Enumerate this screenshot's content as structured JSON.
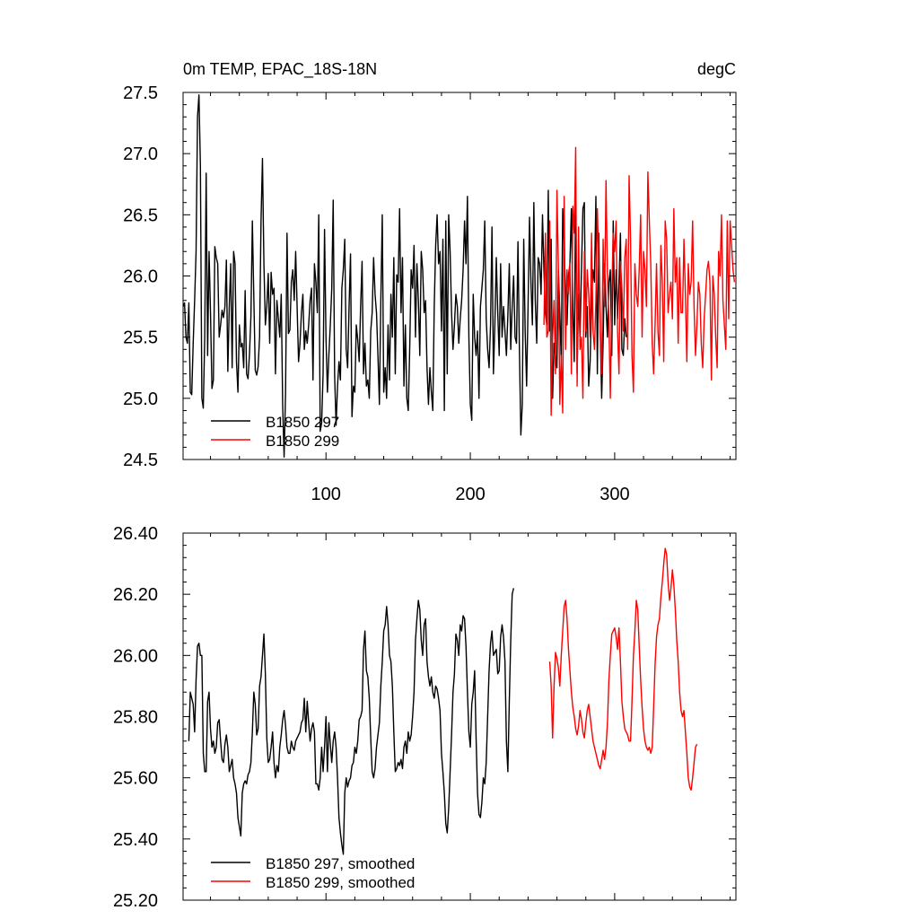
{
  "chart_data": [
    {
      "type": "line",
      "title_left": "0m TEMP, EPAC_18S-18N",
      "title_right": "degC",
      "xlabel": "",
      "ylabel": "",
      "xlim": [
        1,
        384
      ],
      "ylim": [
        24.5,
        27.5
      ],
      "xticks": [
        100,
        200,
        300
      ],
      "xtick_labels": [
        "100",
        "200",
        "300"
      ],
      "yticks": [
        24.5,
        25.0,
        25.5,
        26.0,
        26.5,
        27.0,
        27.5
      ],
      "ytick_labels": [
        "24.5",
        "25.0",
        "25.5",
        "26.0",
        "26.5",
        "27.0",
        "27.5"
      ],
      "grid": false,
      "legend_position": "bottom-left",
      "series": [
        {
          "name": "B1850 297",
          "color": "#000000",
          "x_start": 1,
          "values": [
            25.75,
            25.78,
            25.5,
            25.45,
            25.78,
            25.05,
            25.03,
            25.45,
            25.8,
            26.2,
            27.3,
            27.48,
            26.9,
            25.0,
            24.92,
            25.5,
            26.84,
            25.35,
            26.2,
            25.7,
            25.08,
            25.15,
            26.24,
            26.15,
            26.1,
            25.5,
            25.6,
            25.72,
            25.66,
            25.75,
            26.13,
            25.22,
            25.75,
            26.1,
            25.25,
            26.2,
            26.1,
            25.3,
            25.05,
            25.6,
            25.42,
            25.45,
            25.25,
            25.88,
            25.2,
            25.16,
            25.36,
            25.67,
            26.45,
            25.83,
            25.23,
            25.19,
            25.26,
            25.5,
            26.45,
            26.96,
            26.1,
            25.6,
            25.75,
            26.02,
            25.45,
            26.03,
            25.85,
            25.9,
            25.2,
            25.8,
            25.65,
            25.5,
            25.85,
            24.94,
            24.52,
            25.05,
            26.35,
            25.53,
            25.56,
            25.95,
            26.05,
            25.8,
            26.2,
            25.75,
            25.3,
            25.45,
            25.7,
            25.85,
            25.4,
            25.55,
            25.45,
            25.6,
            25.8,
            25.9,
            25.15,
            26.1,
            25.95,
            25.7,
            26.5,
            24.73,
            24.8,
            25.2,
            26.38,
            25.5,
            25.05,
            25.35,
            25.6,
            25.9,
            26.62,
            25.18,
            24.78,
            25.1,
            25.3,
            25.15,
            25.9,
            26.05,
            26.3,
            25.4,
            25.25,
            25.75,
            26.18,
            24.85,
            25.1,
            25.05,
            25.6,
            25.48,
            25.3,
            25.75,
            26.12,
            25.2,
            25.45,
            25.1,
            25.15,
            25.0,
            25.55,
            25.7,
            26.15,
            25.85,
            25.7,
            25.35,
            24.95,
            25.8,
            26.5,
            25.05,
            25.25,
            25.0,
            25.6,
            25.15,
            25.85,
            25.5,
            26.15,
            25.2,
            26.01,
            25.95,
            26.55,
            25.7,
            26.15,
            25.1,
            25.6,
            25.0,
            24.9,
            25.4,
            26.05,
            25.9,
            26.25,
            25.5,
            26.1,
            25.8,
            25.35,
            26.2,
            26.05,
            25.7,
            25.8,
            25.25,
            24.95,
            25.25,
            25.05,
            24.9,
            25.75,
            26.25,
            26.5,
            26.1,
            26.2,
            25.55,
            26.3,
            24.9,
            26.45,
            25.2,
            26.5,
            26.2,
            25.7,
            25.4,
            25.6,
            25.85,
            25.75,
            25.45,
            25.65,
            25.8,
            26.05,
            26.45,
            26.1,
            26.65,
            25.5,
            24.95,
            24.82,
            25.85,
            25.5,
            25.35,
            25.55,
            25.0,
            25.75,
            25.9,
            26.05,
            26.45,
            25.65,
            25.4,
            25.25,
            25.6,
            26.4,
            25.2,
            25.6,
            26.15,
            25.7,
            25.35,
            26.1,
            25.5,
            25.75,
            25.55,
            25.35,
            25.68,
            26.1,
            25.4,
            25.75,
            26.0,
            25.5,
            25.45,
            26.28,
            25.4,
            24.7,
            24.95,
            26.3,
            25.55,
            25.1,
            25.75,
            26.48,
            25.95,
            25.6,
            26.6,
            25.8,
            25.45,
            26.15,
            26.1,
            25.85,
            26.5,
            26.05,
            25.7,
            25.6,
            26.7,
            25.55,
            26.3,
            25.0,
            25.45,
            25.35,
            25.25,
            26.05,
            25.7,
            25.3,
            26.55,
            26.2,
            25.9,
            25.6,
            26.0,
            26.1,
            26.55,
            25.75,
            25.3,
            26.7,
            25.2,
            25.85,
            25.5,
            26.05,
            26.55,
            26.6,
            25.5,
            25.75,
            25.1,
            25.3,
            25.8,
            26.05,
            25.95,
            26.65,
            25.2,
            26.35,
            25.55,
            25.0,
            25.45,
            26.1,
            25.75,
            25.5,
            25.95,
            26.05,
            25.35,
            26.45,
            25.6,
            26.05,
            25.65,
            25.95,
            26.35,
            25.4,
            25.35,
            25.65,
            25.5
          ]
        },
        {
          "name": "B1850 299",
          "color": "#ff0000",
          "x_start": 251,
          "values": [
            25.6,
            26.35,
            25.5,
            25.55,
            26.45,
            24.86,
            25.5,
            25.8,
            25.2,
            26.7,
            26.08,
            24.95,
            25.35,
            24.88,
            26.65,
            25.4,
            26.05,
            25.85,
            26.1,
            25.2,
            26.57,
            26.35,
            27.05,
            25.1,
            26.4,
            25.4,
            25.5,
            25.0,
            26.2,
            25.55,
            26.05,
            25.85,
            25.5,
            26.35,
            25.55,
            25.4,
            25.8,
            26.55,
            26.1,
            25.55,
            25.2,
            26.3,
            25.75,
            26.78,
            26.0,
            25.65,
            25.0,
            25.85,
            26.35,
            26.2,
            26.45,
            25.55,
            25.2,
            26.12,
            25.9,
            25.55,
            26.15,
            26.3,
            25.4,
            26.82,
            26.3,
            25.35,
            25.05,
            26.1,
            25.85,
            25.75,
            26.05,
            26.5,
            25.5,
            26.2,
            26.05,
            25.75,
            26.85,
            26.45,
            26.1,
            25.45,
            25.2,
            25.6,
            26.1,
            25.55,
            25.35,
            26.25,
            25.95,
            25.3,
            26.45,
            26.3,
            25.7,
            25.85,
            25.95,
            25.65,
            26.55,
            25.95,
            26.15,
            25.45,
            26.15,
            25.7,
            25.7,
            26.3,
            25.85,
            25.3,
            26.1,
            25.85,
            25.95,
            26.45,
            25.75,
            25.35,
            25.6,
            25.95,
            25.85,
            25.45,
            25.25,
            25.65,
            25.85,
            26.05,
            26.12,
            25.95,
            25.15,
            26.0,
            25.85,
            25.5,
            25.25,
            26.2,
            26.0,
            26.5,
            25.8,
            25.6,
            25.4,
            26.45,
            25.65,
            26.45,
            26.25,
            26.05,
            25.95
          ]
        }
      ]
    },
    {
      "type": "line",
      "title_left": "",
      "title_right": "",
      "xlabel": "",
      "ylabel": "",
      "xlim": [
        1,
        384
      ],
      "ylim": [
        25.2,
        26.4
      ],
      "xticks": [
        100,
        200,
        300
      ],
      "xtick_labels": [],
      "yticks": [
        25.2,
        25.4,
        25.6,
        25.8,
        26.0,
        26.2,
        26.4
      ],
      "ytick_labels": [
        "25.20",
        "25.40",
        "25.60",
        "25.80",
        "26.00",
        "26.20",
        "26.40"
      ],
      "grid": false,
      "legend_position": "bottom-left",
      "series": [
        {
          "name": "B1850 297, smoothed",
          "color": "#000000",
          "x_start": 5,
          "values": [
            25.72,
            25.88,
            25.86,
            25.84,
            25.75,
            25.92,
            26.03,
            26.04,
            26.0,
            26.0,
            25.68,
            25.62,
            25.62,
            25.85,
            25.88,
            25.76,
            25.7,
            25.72,
            25.68,
            25.7,
            25.78,
            25.79,
            25.72,
            25.66,
            25.65,
            25.71,
            25.74,
            25.7,
            25.62,
            25.64,
            25.66,
            25.6,
            25.58,
            25.55,
            25.47,
            25.44,
            25.41,
            25.55,
            25.58,
            25.59,
            25.58,
            25.61,
            25.62,
            25.65,
            25.75,
            25.88,
            25.84,
            25.74,
            25.76,
            25.9,
            25.93,
            26.0,
            26.07,
            25.94,
            25.73,
            25.65,
            25.66,
            25.7,
            25.75,
            25.65,
            25.6,
            25.64,
            25.62,
            25.7,
            25.74,
            25.79,
            25.82,
            25.77,
            25.7,
            25.68,
            25.68,
            25.72,
            25.7,
            25.69,
            25.72,
            25.73,
            25.74,
            25.75,
            25.78,
            25.79,
            25.86,
            25.75,
            25.85,
            25.78,
            25.72,
            25.76,
            25.78,
            25.75,
            25.58,
            25.58,
            25.56,
            25.6,
            25.7,
            25.62,
            25.7,
            25.8,
            25.62,
            25.78,
            25.71,
            25.65,
            25.72,
            25.75,
            25.7,
            25.6,
            25.47,
            25.42,
            25.38,
            25.35,
            25.55,
            25.6,
            25.57,
            25.59,
            25.6,
            25.64,
            25.65,
            25.7,
            25.68,
            25.72,
            25.79,
            25.8,
            25.82,
            26.02,
            26.08,
            25.95,
            25.93,
            25.86,
            25.73,
            25.62,
            25.6,
            25.63,
            25.7,
            25.74,
            25.78,
            25.9,
            25.98,
            26.08,
            26.1,
            26.16,
            26.1,
            26.0,
            25.98,
            25.9,
            25.75,
            25.62,
            25.63,
            25.65,
            25.64,
            25.66,
            25.63,
            25.7,
            25.72,
            25.68,
            25.75,
            25.72,
            25.74,
            25.8,
            25.88,
            26.05,
            26.12,
            26.18,
            26.15,
            26.05,
            26.0,
            26.1,
            26.12,
            25.98,
            25.93,
            25.9,
            25.93,
            25.88,
            25.86,
            25.9,
            25.89,
            25.86,
            25.82,
            25.68,
            25.62,
            25.55,
            25.45,
            25.42,
            25.5,
            25.62,
            25.74,
            25.88,
            25.94,
            26.07,
            26.05,
            26.0,
            26.1,
            26.08,
            26.13,
            26.12,
            26.03,
            25.88,
            25.75,
            25.7,
            25.84,
            25.88,
            25.95,
            25.73,
            25.55,
            25.48,
            25.47,
            25.52,
            25.6,
            25.58,
            25.65,
            25.8,
            25.95,
            26.04,
            26.08,
            26.0,
            26.01,
            26.02,
            25.94,
            25.95,
            26.06,
            26.1,
            26.06,
            25.98,
            25.72,
            25.62,
            25.85,
            26.05,
            26.2,
            26.22
          ]
        },
        {
          "name": "B1850 299, smoothed",
          "color": "#ff0000",
          "x_start": 255,
          "values": [
            25.98,
            25.9,
            25.73,
            25.9,
            26.01,
            25.99,
            25.96,
            25.9,
            26.0,
            26.08,
            26.16,
            26.18,
            26.12,
            26.02,
            25.95,
            25.88,
            25.83,
            25.8,
            25.76,
            25.74,
            25.77,
            25.82,
            25.79,
            25.75,
            25.73,
            25.78,
            25.82,
            25.84,
            25.8,
            25.76,
            25.72,
            25.7,
            25.68,
            25.66,
            25.64,
            25.63,
            25.66,
            25.69,
            25.66,
            25.7,
            25.78,
            25.92,
            26.0,
            26.07,
            26.08,
            26.09,
            26.06,
            26.02,
            26.09,
            25.98,
            25.85,
            25.8,
            25.76,
            25.75,
            25.74,
            25.72,
            25.72,
            25.85,
            26.0,
            26.08,
            26.18,
            26.15,
            26.03,
            25.92,
            25.83,
            25.76,
            25.72,
            25.7,
            25.69,
            25.7,
            25.68,
            25.7,
            25.83,
            25.97,
            26.06,
            26.1,
            26.12,
            26.19,
            26.24,
            26.3,
            26.35,
            26.33,
            26.24,
            26.18,
            26.22,
            26.28,
            26.23,
            26.15,
            26.05,
            25.98,
            25.88,
            25.82,
            25.8,
            25.82,
            25.75,
            25.68,
            25.6,
            25.57,
            25.56,
            25.6,
            25.65,
            25.7,
            25.71
          ]
        }
      ]
    }
  ]
}
